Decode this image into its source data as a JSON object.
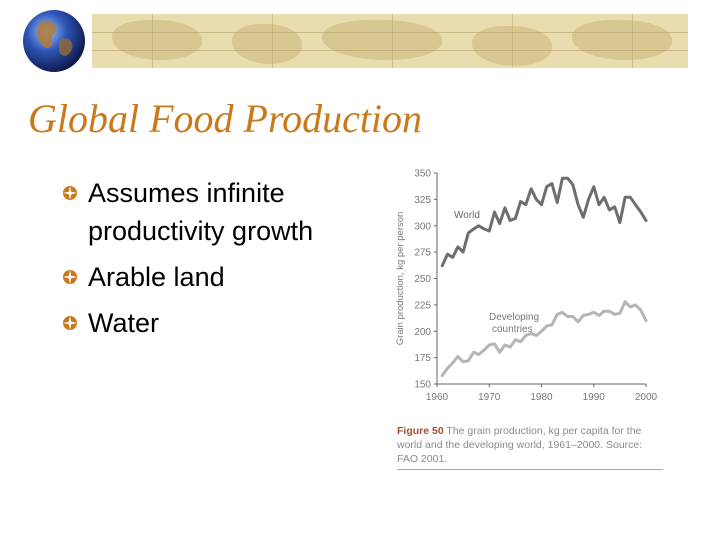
{
  "slide": {
    "title": "Global Food Production",
    "bullets": [
      "Assumes infinite productivity growth",
      "Arable land",
      "Water"
    ]
  },
  "colors": {
    "title": "#c9791a",
    "bullet_icon": "#c9791a",
    "line_world": "#6e6e6e",
    "line_developing": "#b5b5b5",
    "caption_label": "#a0502e",
    "banner": "#e9dcae"
  },
  "icons": {
    "header_logo": "globe-icon",
    "bullet": "compass-rose-bullet-icon"
  },
  "figure": {
    "label": "Figure 50",
    "caption": "The grain production, kg per capita for the world and the developing world, 1961–2000. Source: FAO 2001."
  },
  "chart_data": {
    "type": "line",
    "ylabel": "Grain production, kg per person",
    "xlabel": "",
    "xlim": [
      1960,
      2000
    ],
    "ylim": [
      150,
      350
    ],
    "x_ticks": [
      1960,
      1970,
      1980,
      1990,
      2000
    ],
    "y_ticks": [
      150,
      175,
      200,
      225,
      250,
      275,
      300,
      325,
      350
    ],
    "grid": false,
    "x": [
      1961,
      1962,
      1963,
      1964,
      1965,
      1966,
      1967,
      1968,
      1969,
      1970,
      1971,
      1972,
      1973,
      1974,
      1975,
      1976,
      1977,
      1978,
      1979,
      1980,
      1981,
      1982,
      1983,
      1984,
      1985,
      1986,
      1987,
      1988,
      1989,
      1990,
      1991,
      1992,
      1993,
      1994,
      1995,
      1996,
      1997,
      1998,
      1999,
      2000
    ],
    "series": [
      {
        "name": "World",
        "values": [
          262,
          273,
          270,
          280,
          275,
          293,
          297,
          300,
          297,
          295,
          313,
          302,
          317,
          305,
          307,
          323,
          320,
          335,
          325,
          320,
          337,
          340,
          322,
          345,
          345,
          339,
          320,
          308,
          325,
          337,
          320,
          327,
          315,
          318,
          303,
          327,
          327,
          320,
          313,
          305
        ]
      },
      {
        "name": "Developing countries",
        "values": [
          158,
          165,
          170,
          176,
          171,
          172,
          180,
          178,
          182,
          187,
          188,
          180,
          187,
          185,
          192,
          190,
          196,
          198,
          196,
          200,
          205,
          206,
          216,
          218,
          214,
          214,
          209,
          215,
          216,
          218,
          215,
          219,
          219,
          216,
          217,
          228,
          223,
          225,
          220,
          210
        ]
      }
    ]
  }
}
